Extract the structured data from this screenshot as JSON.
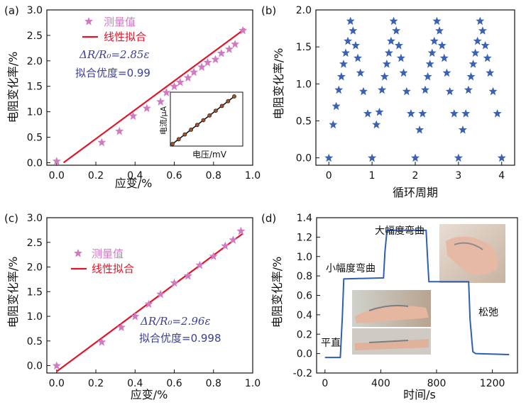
{
  "colors": {
    "star": "#d07ac2",
    "fit": "#e0152a",
    "annot": "#3a3f95",
    "blue": "#2f5fb3",
    "bstar": "#3b62b2",
    "axis": "#111111",
    "inset_dot": "#a0522d"
  },
  "chart_data": [
    {
      "panel": "(a)",
      "type": "scatter",
      "ylabel": "电阻变化率/%",
      "xlabel": "应变/%",
      "xlim": [
        -0.05,
        1.0
      ],
      "ylim": [
        -0.05,
        3.0
      ],
      "xticks": [
        "0.0",
        "0.2",
        "0.4",
        "0.6",
        "0.8",
        "1.0"
      ],
      "yticks": [
        "0.0",
        "0.5",
        "1.0",
        "1.5",
        "2.0",
        "2.5",
        "3.0"
      ],
      "legend": [
        "测量值",
        "线性拟合"
      ],
      "annotations": [
        "ΔR/R₀=2.85ε",
        "拟合优度=0.99"
      ],
      "series": [
        {
          "name": "测量值",
          "type": "scatter",
          "x": [
            0,
            0.23,
            0.32,
            0.39,
            0.46,
            0.53,
            0.56,
            0.6,
            0.63,
            0.67,
            0.7,
            0.74,
            0.77,
            0.81,
            0.84,
            0.88,
            0.91,
            0.95
          ],
          "y": [
            0.03,
            0.4,
            0.62,
            0.92,
            1.07,
            1.2,
            1.38,
            1.5,
            1.58,
            1.67,
            1.78,
            1.88,
            1.97,
            2.03,
            2.15,
            2.23,
            2.33,
            2.6
          ]
        },
        {
          "name": "线性拟合",
          "type": "line",
          "x": [
            0.035,
            0.96
          ],
          "y": [
            0.0,
            2.63
          ]
        }
      ],
      "inset": {
        "ylabel": "电流/μA",
        "xlabel": "电压/mV",
        "points": 11
      }
    },
    {
      "panel": "(b)",
      "type": "scatter",
      "ylabel": "电阻变化率/%",
      "xlabel": "循环周期",
      "xlim": [
        -0.3,
        4.3
      ],
      "ylim": [
        -0.1,
        2.0
      ],
      "xticks": [
        "0",
        "1",
        "2",
        "3",
        "4"
      ],
      "yticks": [
        "0.0",
        "0.5",
        "1.0",
        "1.5",
        "2.0"
      ],
      "series": [
        {
          "type": "scatter",
          "x": [
            0,
            0.1,
            0.17,
            0.23,
            0.29,
            0.34,
            0.39,
            0.44,
            0.5,
            0.56,
            0.62,
            0.67,
            0.73,
            0.8,
            0.9,
            1.0,
            1.1,
            1.17,
            1.23,
            1.29,
            1.34,
            1.39,
            1.44,
            1.5,
            1.56,
            1.62,
            1.67,
            1.73,
            1.8,
            1.9,
            2.0,
            2.1,
            2.17,
            2.23,
            2.29,
            2.34,
            2.39,
            2.44,
            2.5,
            2.56,
            2.62,
            2.67,
            2.73,
            2.8,
            2.9,
            3.0,
            3.1,
            3.17,
            3.23,
            3.29,
            3.34,
            3.39,
            3.44,
            3.5,
            3.56,
            3.62,
            3.67,
            3.73,
            3.8,
            3.9,
            4.0
          ],
          "y": [
            0,
            0.45,
            0.7,
            0.92,
            1.1,
            1.27,
            1.42,
            1.58,
            1.85,
            1.72,
            1.52,
            1.35,
            1.15,
            0.9,
            0.6,
            0,
            0.45,
            0.62,
            0.92,
            1.1,
            1.27,
            1.42,
            1.58,
            1.85,
            1.72,
            1.52,
            1.35,
            1.15,
            0.9,
            0.6,
            0,
            0.38,
            0.6,
            0.92,
            1.1,
            1.27,
            1.42,
            1.58,
            1.85,
            1.72,
            1.52,
            1.35,
            1.15,
            0.9,
            0.6,
            0,
            0.38,
            0.6,
            0.92,
            1.1,
            1.27,
            1.42,
            1.58,
            1.85,
            1.72,
            1.52,
            1.35,
            1.15,
            0.9,
            0.6,
            0
          ]
        }
      ]
    },
    {
      "panel": "(c)",
      "type": "scatter",
      "ylabel": "电阻变化率/%",
      "xlabel": "应变/%",
      "xlim": [
        -0.05,
        1.0
      ],
      "ylim": [
        -0.15,
        3.0
      ],
      "xticks": [
        "0.0",
        "0.2",
        "0.4",
        "0.6",
        "0.8",
        "1.0"
      ],
      "yticks": [
        "0.0",
        "0.5",
        "1.0",
        "1.5",
        "2.0",
        "2.5",
        "3.0"
      ],
      "legend": [
        "测量值",
        "线性拟合"
      ],
      "annotations": [
        "ΔR/R₀=2.96ε",
        "拟合优度=0.998"
      ],
      "series": [
        {
          "name": "测量值",
          "type": "scatter",
          "x": [
            0,
            0.23,
            0.33,
            0.4,
            0.47,
            0.53,
            0.6,
            0.67,
            0.73,
            0.8,
            0.86,
            0.9,
            0.94
          ],
          "y": [
            0.0,
            0.48,
            0.78,
            1.0,
            1.25,
            1.45,
            1.68,
            1.82,
            2.04,
            2.22,
            2.43,
            2.55,
            2.73
          ]
        },
        {
          "name": "线性拟合",
          "type": "line",
          "x": [
            0.0,
            0.95
          ],
          "y": [
            -0.12,
            2.68
          ]
        }
      ]
    },
    {
      "panel": "(d)",
      "type": "line",
      "ylabel": "电阻变化率/%",
      "xlabel": "时间/s",
      "xlim": [
        -60,
        1380
      ],
      "ylim": [
        -0.2,
        1.4
      ],
      "xticks": [
        "0",
        "400",
        "800",
        "1200"
      ],
      "yticks": [
        "-0.2",
        "0.0",
        "0.2",
        "0.4",
        "0.6",
        "0.8",
        "1.0",
        "1.2",
        "1.4"
      ],
      "annotations": [
        "大幅度弯曲",
        "小幅度弯曲",
        "平直",
        "松弛"
      ],
      "series": [
        {
          "type": "line",
          "x": [
            0,
            110,
            125,
            135,
            150,
            420,
            430,
            445,
            725,
            735,
            745,
            1030,
            1040,
            1060,
            1080,
            1320
          ],
          "y": [
            -0.04,
            -0.04,
            0.4,
            0.77,
            0.77,
            0.78,
            1.05,
            1.27,
            1.27,
            1.0,
            0.74,
            0.74,
            0.35,
            0.02,
            0.0,
            -0.01
          ]
        }
      ]
    }
  ]
}
